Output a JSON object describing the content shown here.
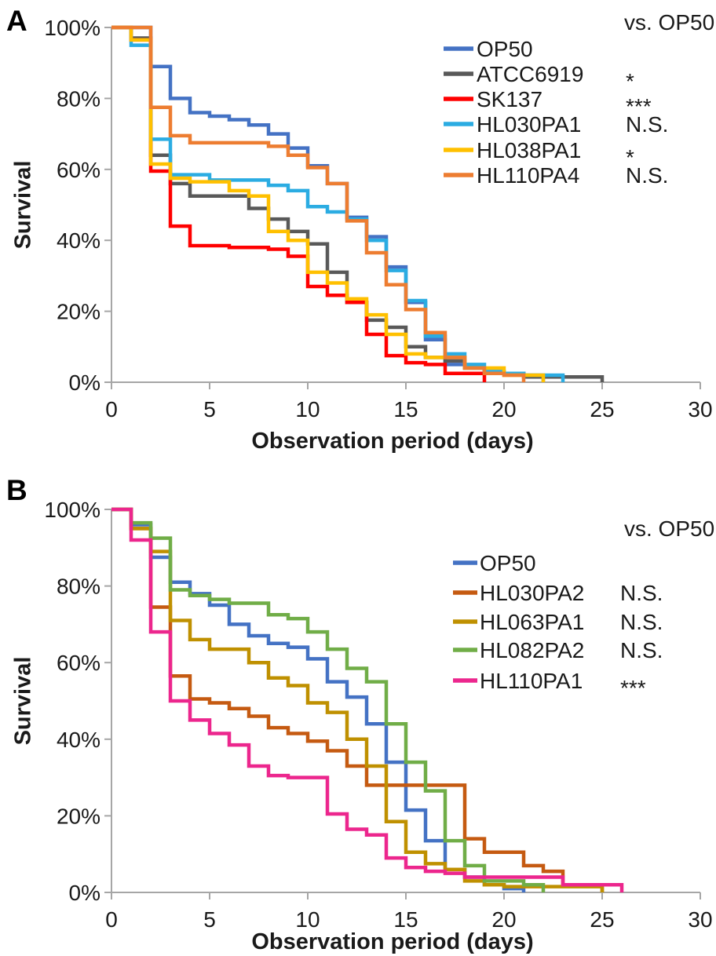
{
  "chart_data": [
    {
      "type": "line",
      "subtype": "kaplan-meier-step-survival",
      "panel": "A",
      "label": "A",
      "xlabel": "Observation period (days)",
      "ylabel": "Survival",
      "legend_title": "vs. OP50",
      "legend_position": "top-right",
      "grid": "off",
      "xlim": [
        0,
        30
      ],
      "ylim_pct": [
        0,
        100
      ],
      "x_ticks": [
        0,
        5,
        10,
        15,
        20,
        25,
        30
      ],
      "y_tick_labels": [
        "100%",
        "80%",
        "60%",
        "40%",
        "20%",
        "0%"
      ],
      "axis_color": "#a6a6a6",
      "series": [
        {
          "name": "OP50",
          "color": "#4472C4",
          "sig": "",
          "points": [
            [
              0,
              100
            ],
            [
              2,
              89
            ],
            [
              3,
              80
            ],
            [
              4,
              76
            ],
            [
              5,
              75
            ],
            [
              6,
              74
            ],
            [
              7,
              72.5
            ],
            [
              8,
              70
            ],
            [
              9,
              66
            ],
            [
              10,
              61
            ],
            [
              11,
              56
            ],
            [
              12,
              46.5
            ],
            [
              13,
              41
            ],
            [
              14,
              32.5
            ],
            [
              15,
              22.5
            ],
            [
              16,
              12
            ],
            [
              17,
              5
            ],
            [
              18,
              4
            ],
            [
              19,
              3
            ],
            [
              20,
              2.5
            ],
            [
              21,
              2
            ],
            [
              22,
              0
            ]
          ]
        },
        {
          "name": "ATCC6919",
          "color": "#595959",
          "sig": "*",
          "points": [
            [
              0,
              100
            ],
            [
              1,
              97
            ],
            [
              2,
              64
            ],
            [
              3,
              56
            ],
            [
              4,
              52.5
            ],
            [
              7,
              49
            ],
            [
              8,
              46
            ],
            [
              9,
              42.5
            ],
            [
              10,
              39
            ],
            [
              11,
              31
            ],
            [
              12,
              22.5
            ],
            [
              13,
              17.5
            ],
            [
              14,
              15.5
            ],
            [
              15,
              10
            ],
            [
              16,
              7
            ],
            [
              17,
              6
            ],
            [
              18,
              4
            ],
            [
              19,
              2.5
            ],
            [
              21,
              1.5
            ],
            [
              25,
              0
            ]
          ]
        },
        {
          "name": "SK137",
          "color": "#FF0000",
          "sig": "***",
          "points": [
            [
              0,
              100
            ],
            [
              1,
              96.5
            ],
            [
              2,
              59.5
            ],
            [
              3,
              44
            ],
            [
              4,
              38.5
            ],
            [
              6,
              38
            ],
            [
              8,
              37.5
            ],
            [
              9,
              35.5
            ],
            [
              10,
              27
            ],
            [
              11,
              24.5
            ],
            [
              12,
              22.5
            ],
            [
              13,
              13.5
            ],
            [
              14,
              7.5
            ],
            [
              15,
              5.5
            ],
            [
              16,
              5
            ],
            [
              17,
              2.5
            ],
            [
              19,
              0
            ]
          ]
        },
        {
          "name": "HL030PA1",
          "color": "#2BACE2",
          "sig": "N.S.",
          "points": [
            [
              0,
              100
            ],
            [
              1,
              95
            ],
            [
              2,
              68.5
            ],
            [
              3,
              58.5
            ],
            [
              5,
              57
            ],
            [
              8,
              55.5
            ],
            [
              9,
              54
            ],
            [
              10,
              49.5
            ],
            [
              11,
              48
            ],
            [
              12,
              46
            ],
            [
              13,
              40
            ],
            [
              14,
              31.5
            ],
            [
              15,
              23
            ],
            [
              16,
              13
            ],
            [
              17,
              8
            ],
            [
              18,
              5
            ],
            [
              19,
              3
            ],
            [
              20,
              2.5
            ],
            [
              21,
              2
            ],
            [
              23,
              0
            ]
          ]
        },
        {
          "name": "HL038PA1",
          "color": "#FFC000",
          "sig": "*",
          "points": [
            [
              0,
              100
            ],
            [
              1,
              96.5
            ],
            [
              2,
              61.5
            ],
            [
              3,
              57.5
            ],
            [
              4,
              56.5
            ],
            [
              6,
              54
            ],
            [
              7,
              52.5
            ],
            [
              8,
              42.5
            ],
            [
              9,
              40
            ],
            [
              10,
              31
            ],
            [
              11,
              28
            ],
            [
              12,
              23.5
            ],
            [
              13,
              19
            ],
            [
              14,
              13.5
            ],
            [
              15,
              8
            ],
            [
              16,
              7
            ],
            [
              18,
              4
            ],
            [
              20,
              2
            ],
            [
              22,
              0
            ]
          ]
        },
        {
          "name": "HL110PA4",
          "color": "#ED7D31",
          "sig": "N.S.",
          "points": [
            [
              0,
              100
            ],
            [
              2,
              77.5
            ],
            [
              3,
              69.5
            ],
            [
              4,
              67.5
            ],
            [
              8,
              66.5
            ],
            [
              9,
              64
            ],
            [
              10,
              60.5
            ],
            [
              11,
              56
            ],
            [
              12,
              45.5
            ],
            [
              13,
              36.5
            ],
            [
              14,
              27.5
            ],
            [
              15,
              20.5
            ],
            [
              16,
              14
            ],
            [
              17,
              7
            ],
            [
              18,
              4
            ],
            [
              19,
              2.5
            ],
            [
              20,
              2
            ],
            [
              21,
              0
            ]
          ]
        }
      ]
    },
    {
      "type": "line",
      "subtype": "kaplan-meier-step-survival",
      "panel": "B",
      "label": "B",
      "xlabel": "Observation period (days)",
      "ylabel": "Survival",
      "legend_title": "vs. OP50",
      "legend_position": "top-right",
      "grid": "off",
      "xlim": [
        0,
        30
      ],
      "ylim_pct": [
        0,
        100
      ],
      "x_ticks": [
        0,
        5,
        10,
        15,
        20,
        25,
        30
      ],
      "y_tick_labels": [
        "100%",
        "80%",
        "60%",
        "40%",
        "20%",
        "0%"
      ],
      "axis_color": "#a6a6a6",
      "series": [
        {
          "name": "OP50",
          "color": "#4472C4",
          "sig": "",
          "points": [
            [
              0,
              100
            ],
            [
              1,
              96
            ],
            [
              2,
              87.5
            ],
            [
              3,
              81
            ],
            [
              4,
              78
            ],
            [
              5,
              75
            ],
            [
              6,
              70
            ],
            [
              7,
              67
            ],
            [
              8,
              65
            ],
            [
              9,
              64
            ],
            [
              10,
              61
            ],
            [
              11,
              55
            ],
            [
              12,
              51
            ],
            [
              13,
              44
            ],
            [
              14,
              34
            ],
            [
              15,
              21.5
            ],
            [
              16,
              13.5
            ],
            [
              17,
              6
            ],
            [
              18,
              4
            ],
            [
              19,
              2
            ],
            [
              20,
              1
            ],
            [
              21,
              0
            ]
          ]
        },
        {
          "name": "HL030PA2",
          "color": "#C55A11",
          "sig": "N.S.",
          "points": [
            [
              0,
              100
            ],
            [
              1,
              95
            ],
            [
              2,
              74.5
            ],
            [
              3,
              56.5
            ],
            [
              4,
              50.5
            ],
            [
              5,
              49.5
            ],
            [
              6,
              48
            ],
            [
              7,
              46
            ],
            [
              8,
              43
            ],
            [
              9,
              41.5
            ],
            [
              10,
              39.5
            ],
            [
              11,
              37
            ],
            [
              12,
              33
            ],
            [
              13,
              28
            ],
            [
              18,
              14
            ],
            [
              19,
              10.5
            ],
            [
              21,
              7
            ],
            [
              22,
              5.5
            ],
            [
              23,
              2
            ],
            [
              25,
              0
            ]
          ]
        },
        {
          "name": "HL063PA1",
          "color": "#BF9000",
          "sig": "N.S.",
          "points": [
            [
              0,
              100
            ],
            [
              1,
              95
            ],
            [
              2,
              89
            ],
            [
              3,
              71
            ],
            [
              4,
              66
            ],
            [
              5,
              63.5
            ],
            [
              7,
              60
            ],
            [
              8,
              56
            ],
            [
              9,
              54
            ],
            [
              10,
              49.5
            ],
            [
              11,
              47
            ],
            [
              12,
              40
            ],
            [
              13,
              33
            ],
            [
              14,
              18.5
            ],
            [
              15,
              10.5
            ],
            [
              16,
              7.5
            ],
            [
              17,
              6
            ],
            [
              18,
              3
            ],
            [
              19,
              2
            ],
            [
              20,
              1.5
            ],
            [
              25,
              0
            ]
          ]
        },
        {
          "name": "HL082PA2",
          "color": "#70AD47",
          "sig": "N.S.",
          "points": [
            [
              0,
              100
            ],
            [
              1,
              96.5
            ],
            [
              2,
              92.5
            ],
            [
              3,
              79
            ],
            [
              4,
              77.5
            ],
            [
              5,
              76.5
            ],
            [
              6,
              75.5
            ],
            [
              8,
              72.5
            ],
            [
              9,
              71.5
            ],
            [
              10,
              68
            ],
            [
              11,
              63.5
            ],
            [
              12,
              58.5
            ],
            [
              13,
              55
            ],
            [
              14,
              44
            ],
            [
              15,
              34
            ],
            [
              16,
              26.5
            ],
            [
              17,
              13.5
            ],
            [
              18,
              7
            ],
            [
              19,
              3
            ],
            [
              21,
              2
            ],
            [
              22,
              0
            ]
          ]
        },
        {
          "name": "HL110PA1",
          "color": "#EC268D",
          "sig": "***",
          "points": [
            [
              0,
              100
            ],
            [
              1,
              92
            ],
            [
              2,
              68
            ],
            [
              3,
              50
            ],
            [
              4,
              45
            ],
            [
              5,
              41.5
            ],
            [
              6,
              38.5
            ],
            [
              7,
              33
            ],
            [
              8,
              30.5
            ],
            [
              9,
              30
            ],
            [
              11,
              20.5
            ],
            [
              12,
              16.5
            ],
            [
              13,
              15
            ],
            [
              14,
              9
            ],
            [
              15,
              6.5
            ],
            [
              16,
              5.5
            ],
            [
              17,
              5
            ],
            [
              18,
              4
            ],
            [
              23,
              2
            ],
            [
              26,
              0
            ]
          ]
        }
      ]
    }
  ]
}
